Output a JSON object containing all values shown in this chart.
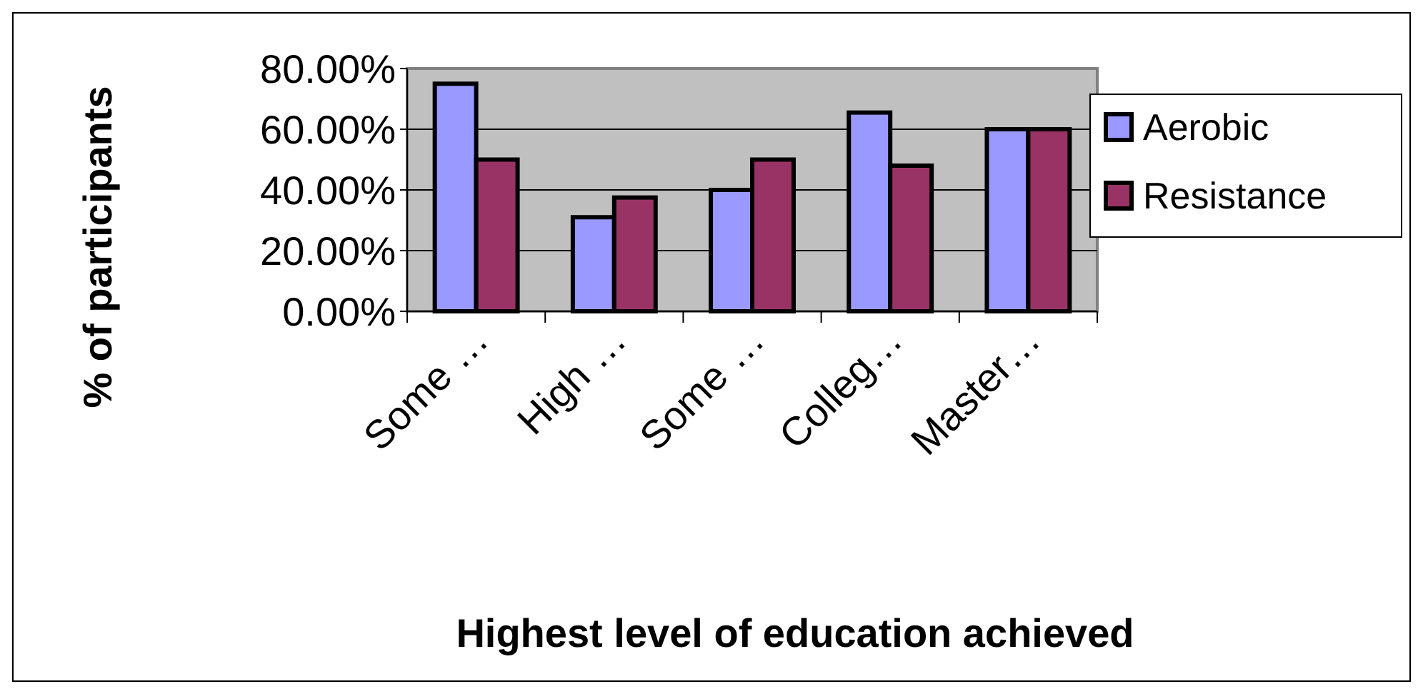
{
  "chart_data": {
    "type": "bar",
    "xlabel": "Highest level of education achieved",
    "ylabel": "% of participants",
    "categories": [
      "Some …",
      "High …",
      "Some …",
      "Colleg…",
      "Master…"
    ],
    "series": [
      {
        "name": "Aerobic",
        "color": "#9999ff",
        "values": [
          75,
          31,
          40,
          65.5,
          60
        ]
      },
      {
        "name": "Resistance",
        "color": "#993366",
        "values": [
          50,
          37.5,
          50,
          48,
          60
        ]
      }
    ],
    "ylim": [
      0,
      80
    ],
    "yticks": [
      {
        "value": 0,
        "label": "0.00%"
      },
      {
        "value": 20,
        "label": "20.00%"
      },
      {
        "value": 40,
        "label": "40.00%"
      },
      {
        "value": 60,
        "label": "60.00%"
      },
      {
        "value": 80,
        "label": "80.00%"
      }
    ],
    "grid": "y",
    "legend": "right"
  }
}
